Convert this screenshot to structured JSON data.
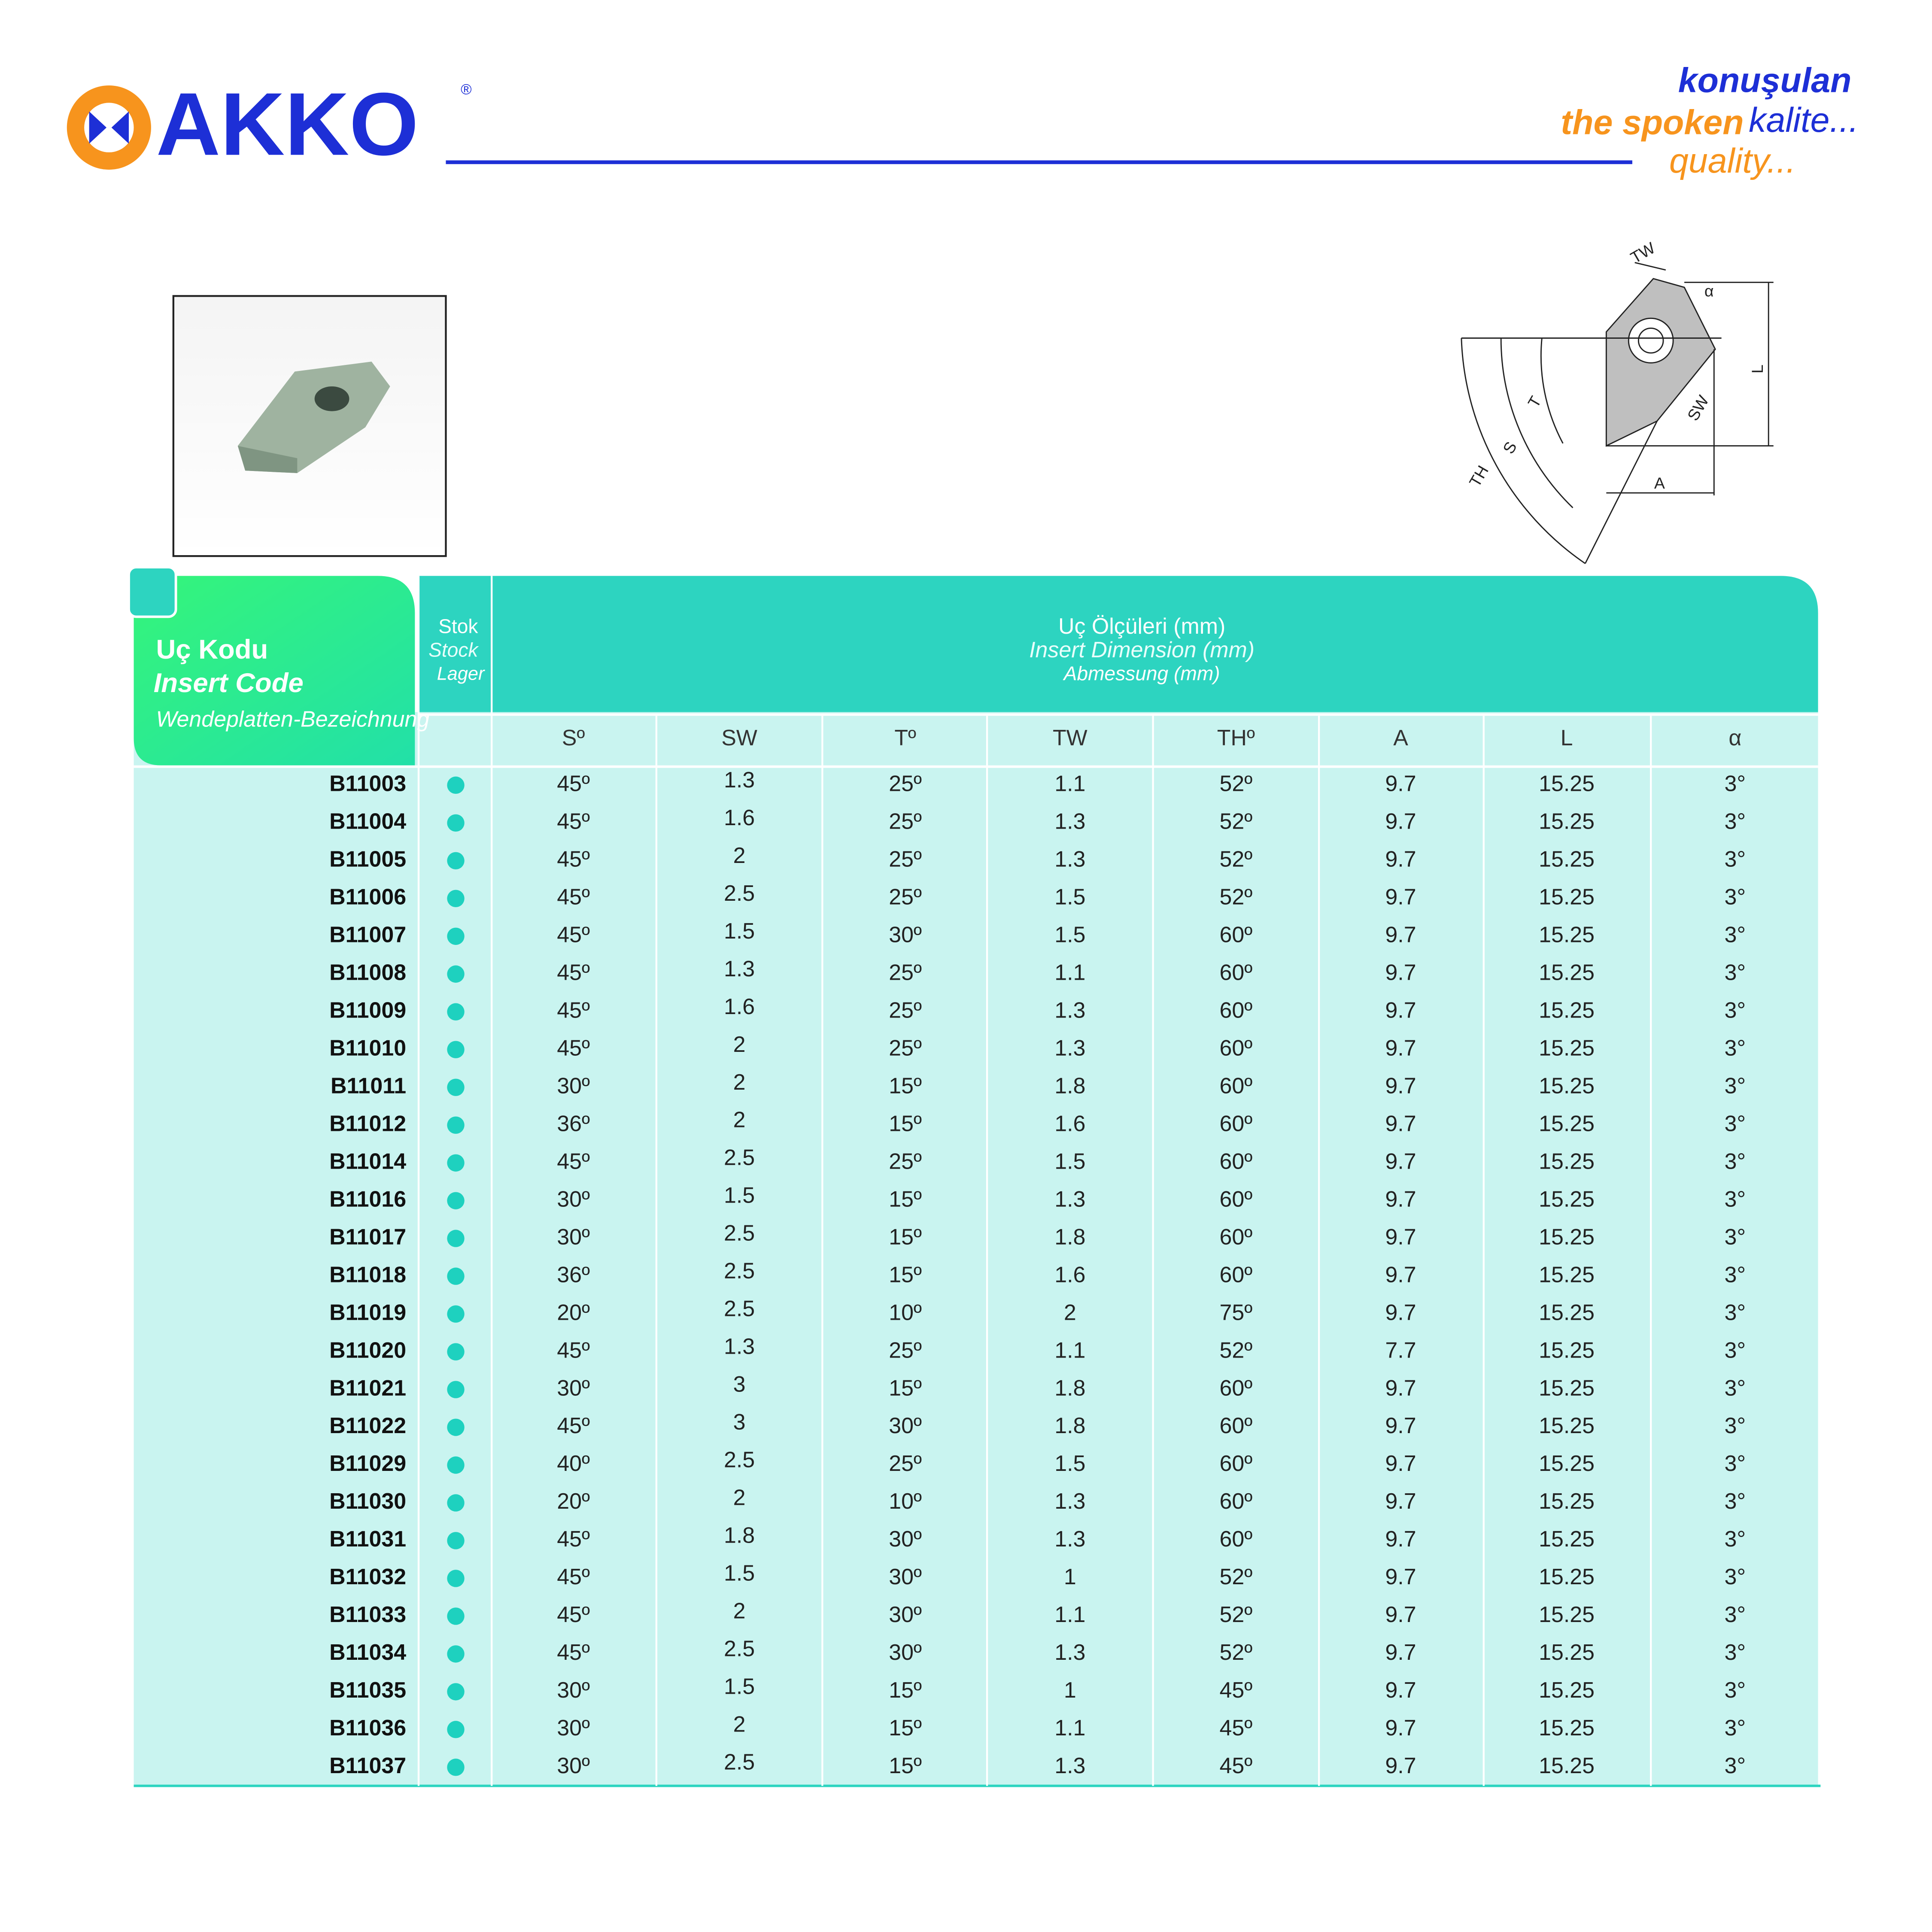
{
  "header": {
    "logo": "AKKO",
    "registered": "®",
    "tagline": {
      "tr": "konuşulan",
      "en_1": "the spoken",
      "tr_2": "kalite...",
      "en_2": "quality..."
    }
  },
  "diagram": {
    "labels": [
      "TW",
      "α",
      "L",
      "T",
      "S",
      "TH",
      "SW",
      "A"
    ]
  },
  "table": {
    "code_header": [
      "Uç Kodu",
      "Insert Code",
      "Wendeplatten-Bezeichnung"
    ],
    "stock_header": [
      "Stok",
      "Stock",
      "Lager"
    ],
    "dimension_header": [
      "Uç Ölçüleri (mm)",
      "Insert Dimension (mm)",
      "Abmessung (mm)"
    ],
    "columns": [
      "Sº",
      "SW",
      "Tº",
      "TW",
      "THº",
      "A",
      "L",
      "α"
    ],
    "rows": [
      [
        "B11003",
        "45º",
        "1.3",
        "25º",
        "1.1",
        "52º",
        "9.7",
        "15.25",
        "3°"
      ],
      [
        "B11004",
        "45º",
        "1.6",
        "25º",
        "1.3",
        "52º",
        "9.7",
        "15.25",
        "3°"
      ],
      [
        "B11005",
        "45º",
        "2",
        "25º",
        "1.3",
        "52º",
        "9.7",
        "15.25",
        "3°"
      ],
      [
        "B11006",
        "45º",
        "2.5",
        "25º",
        "1.5",
        "52º",
        "9.7",
        "15.25",
        "3°"
      ],
      [
        "B11007",
        "45º",
        "1.5",
        "30º",
        "1.5",
        "60º",
        "9.7",
        "15.25",
        "3°"
      ],
      [
        "B11008",
        "45º",
        "1.3",
        "25º",
        "1.1",
        "60º",
        "9.7",
        "15.25",
        "3°"
      ],
      [
        "B11009",
        "45º",
        "1.6",
        "25º",
        "1.3",
        "60º",
        "9.7",
        "15.25",
        "3°"
      ],
      [
        "B11010",
        "45º",
        "2",
        "25º",
        "1.3",
        "60º",
        "9.7",
        "15.25",
        "3°"
      ],
      [
        "B11011",
        "30º",
        "2",
        "15º",
        "1.8",
        "60º",
        "9.7",
        "15.25",
        "3°"
      ],
      [
        "B11012",
        "36º",
        "2",
        "15º",
        "1.6",
        "60º",
        "9.7",
        "15.25",
        "3°"
      ],
      [
        "B11014",
        "45º",
        "2.5",
        "25º",
        "1.5",
        "60º",
        "9.7",
        "15.25",
        "3°"
      ],
      [
        "B11016",
        "30º",
        "1.5",
        "15º",
        "1.3",
        "60º",
        "9.7",
        "15.25",
        "3°"
      ],
      [
        "B11017",
        "30º",
        "2.5",
        "15º",
        "1.8",
        "60º",
        "9.7",
        "15.25",
        "3°"
      ],
      [
        "B11018",
        "36º",
        "2.5",
        "15º",
        "1.6",
        "60º",
        "9.7",
        "15.25",
        "3°"
      ],
      [
        "B11019",
        "20º",
        "2.5",
        "10º",
        "2",
        "75º",
        "9.7",
        "15.25",
        "3°"
      ],
      [
        "B11020",
        "45º",
        "1.3",
        "25º",
        "1.1",
        "52º",
        "7.7",
        "15.25",
        "3°"
      ],
      [
        "B11021",
        "30º",
        "3",
        "15º",
        "1.8",
        "60º",
        "9.7",
        "15.25",
        "3°"
      ],
      [
        "B11022",
        "45º",
        "3",
        "30º",
        "1.8",
        "60º",
        "9.7",
        "15.25",
        "3°"
      ],
      [
        "B11029",
        "40º",
        "2.5",
        "25º",
        "1.5",
        "60º",
        "9.7",
        "15.25",
        "3°"
      ],
      [
        "B11030",
        "20º",
        "2",
        "10º",
        "1.3",
        "60º",
        "9.7",
        "15.25",
        "3°"
      ],
      [
        "B11031",
        "45º",
        "1.8",
        "30º",
        "1.3",
        "60º",
        "9.7",
        "15.25",
        "3°"
      ],
      [
        "B11032",
        "45º",
        "1.5",
        "30º",
        "1",
        "52º",
        "9.7",
        "15.25",
        "3°"
      ],
      [
        "B11033",
        "45º",
        "2",
        "30º",
        "1.1",
        "52º",
        "9.7",
        "15.25",
        "3°"
      ],
      [
        "B11034",
        "45º",
        "2.5",
        "30º",
        "1.3",
        "52º",
        "9.7",
        "15.25",
        "3°"
      ],
      [
        "B11035",
        "30º",
        "1.5",
        "15º",
        "1",
        "45º",
        "9.7",
        "15.25",
        "3°"
      ],
      [
        "B11036",
        "30º",
        "2",
        "15º",
        "1.1",
        "45º",
        "9.7",
        "15.25",
        "3°"
      ],
      [
        "B11037",
        "30º",
        "2.5",
        "15º",
        "1.3",
        "45º",
        "9.7",
        "15.25",
        "3°"
      ]
    ]
  }
}
